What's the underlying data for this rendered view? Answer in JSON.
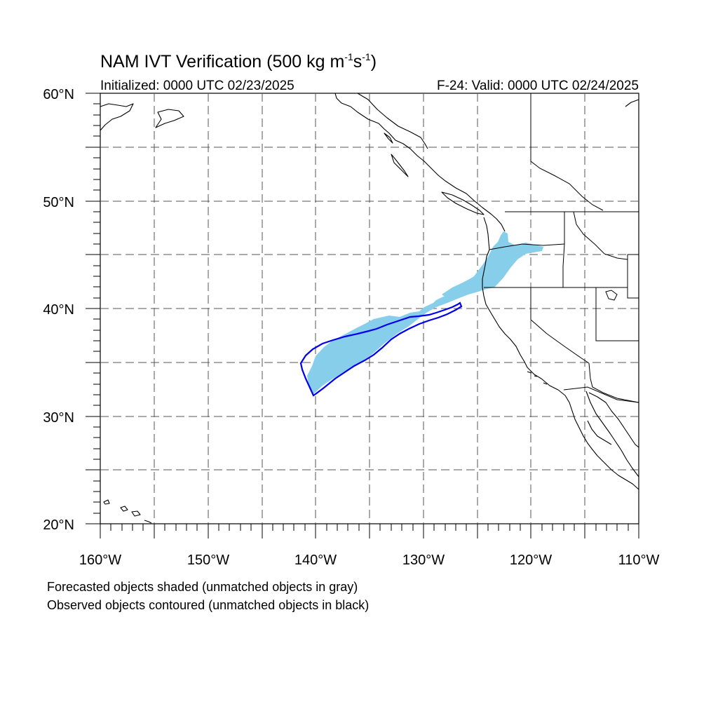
{
  "title": {
    "prefix": "NAM IVT Verification (500 kg m",
    "exp1": "-1",
    "mid": "s",
    "exp2": "-1",
    "suffix": ")"
  },
  "initialized": "Initialized: 0000 UTC 02/23/2025",
  "valid": "F-24: Valid: 0000 UTC 02/24/2025",
  "footnotes": {
    "forecast": "Forecasted objects shaded (unmatched objects in gray)",
    "observed": "Observed objects contoured (unmatched objects in black)"
  },
  "axes": {
    "lat_labels": [
      "60°N",
      "50°N",
      "40°N",
      "30°N",
      "20°N"
    ],
    "lon_labels": [
      "160°W",
      "150°W",
      "140°W",
      "130°W",
      "120°W",
      "110°W"
    ]
  },
  "colors": {
    "forecast_fill": "#87ceeb",
    "observed_contour": "#0000ee",
    "coastline": "#000000",
    "grid": "#555555"
  }
}
